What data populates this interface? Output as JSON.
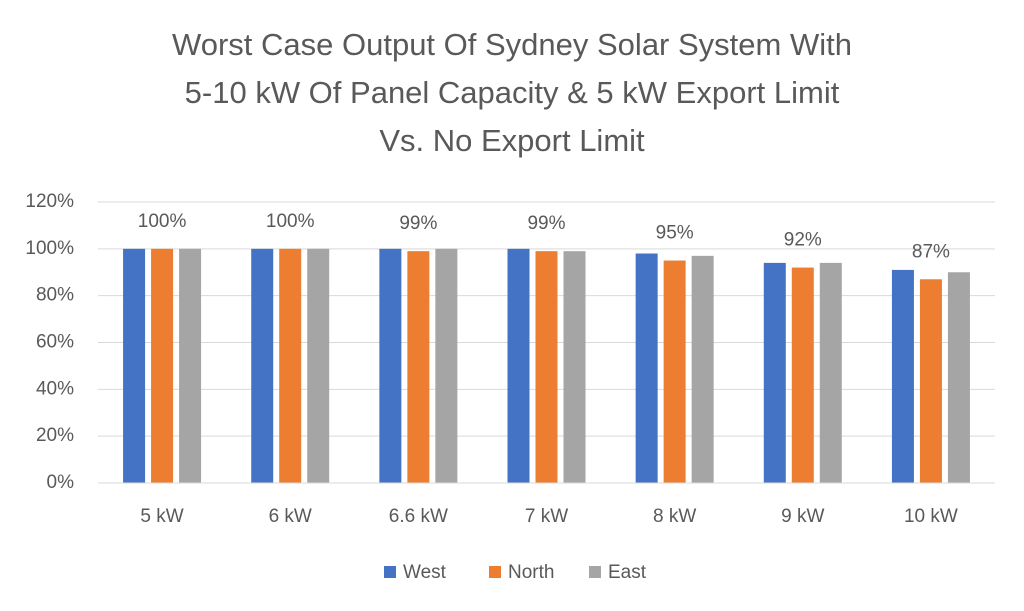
{
  "chart_data": {
    "type": "bar",
    "title": [
      "Worst Case Output Of Sydney Solar System With",
      "5-10 kW Of Panel Capacity & 5 kW Export Limit",
      "Vs. No Export Limit"
    ],
    "categories": [
      "5 kW",
      "6 kW",
      "6.6 kW",
      "7 kW",
      "8 kW",
      "9 kW",
      "10 kW"
    ],
    "series": [
      {
        "name": "West",
        "color": "#4472c4",
        "values": [
          100,
          100,
          100,
          100,
          98,
          94,
          91
        ]
      },
      {
        "name": "North",
        "color": "#ed7d31",
        "values": [
          100,
          100,
          99,
          99,
          95,
          92,
          87
        ],
        "value_labels": [
          "100%",
          "100%",
          "99%",
          "99%",
          "95%",
          "92%",
          "87%"
        ]
      },
      {
        "name": "East",
        "color": "#a5a5a5",
        "values": [
          100,
          100,
          100,
          99,
          97,
          94,
          90
        ]
      }
    ],
    "ylim": [
      0,
      120
    ],
    "yticks": [
      {
        "value": 0,
        "label": "0%"
      },
      {
        "value": 20,
        "label": "20%"
      },
      {
        "value": 40,
        "label": "40%"
      },
      {
        "value": 60,
        "label": "60%"
      },
      {
        "value": 80,
        "label": "80%"
      },
      {
        "value": 100,
        "label": "100%"
      },
      {
        "value": 120,
        "label": "120%"
      }
    ],
    "grid": true,
    "legend": "bottom"
  }
}
